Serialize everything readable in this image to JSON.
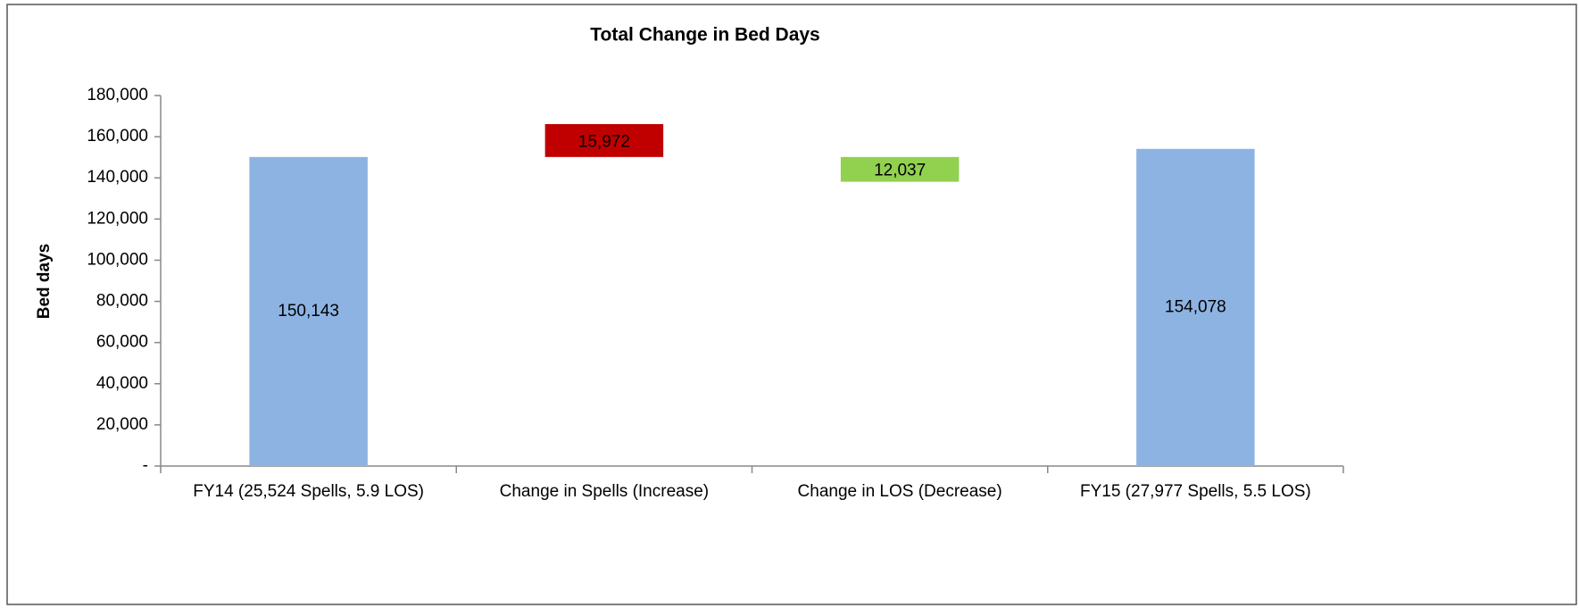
{
  "chart_data": {
    "type": "waterfall",
    "title": "Total Change in Bed Days",
    "y_label": "Bed days",
    "categories": [
      "FY14 (25,524 Spells, 5.9 LOS)",
      "Change in Spells (Increase)",
      "Change in LOS (Decrease)",
      "FY15  (27,977 Spells, 5.5 LOS)"
    ],
    "values": [
      150143,
      15972,
      -12037,
      154078
    ],
    "value_labels": [
      "150,143",
      "15,972",
      "12,037",
      "154,078"
    ],
    "totals": [
      true,
      false,
      false,
      true
    ],
    "colors": [
      "#8db3e2",
      "#c00000",
      "#92d050",
      "#8db3e2"
    ],
    "ylim": [
      0,
      180000
    ],
    "yticks": [
      {
        "value": 0,
        "label": "-"
      },
      {
        "value": 20000,
        "label": "20,000"
      },
      {
        "value": 40000,
        "label": "40,000"
      },
      {
        "value": 60000,
        "label": "60,000"
      },
      {
        "value": 80000,
        "label": "80,000"
      },
      {
        "value": 100000,
        "label": "100,000"
      },
      {
        "value": 120000,
        "label": "120,000"
      },
      {
        "value": 140000,
        "label": "140,000"
      },
      {
        "value": 160000,
        "label": "160,000"
      },
      {
        "value": 180000,
        "label": "180,000"
      }
    ],
    "grid": false
  }
}
